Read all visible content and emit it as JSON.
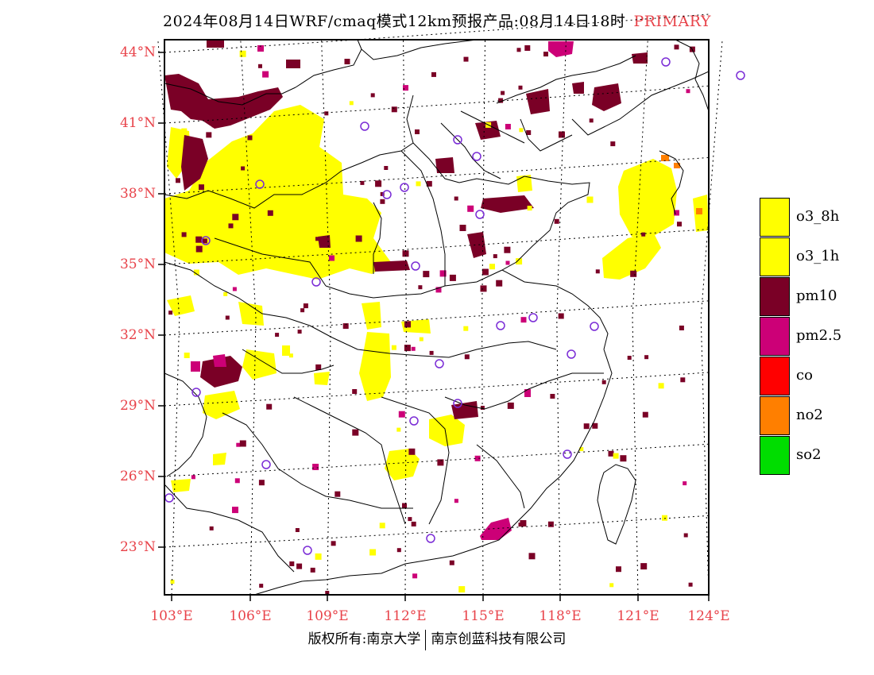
{
  "title": {
    "main": "2024年08月14日WRF/cmaq模式12km预报产品:08月14日18时",
    "tag": "PRIMARY"
  },
  "colors": {
    "label_red": "#e8434a",
    "o3_8h": "#ffff00",
    "o3_1h": "#ffff00",
    "pm10": "#7a0026",
    "pm25": "#cc0077",
    "co": "#ff0000",
    "no2": "#ff7f00",
    "so2": "#00dd00",
    "station": "#7a2bd6"
  },
  "lat_labels": [
    "44°N",
    "41°N",
    "38°N",
    "35°N",
    "32°N",
    "29°N",
    "26°N",
    "23°N"
  ],
  "lon_labels": [
    "103°E",
    "106°E",
    "109°E",
    "112°E",
    "115°E",
    "118°E",
    "121°E",
    "124°E"
  ],
  "legend": [
    {
      "label": "o3_8h",
      "color": "#ffff00"
    },
    {
      "label": "o3_1h",
      "color": "#ffff00"
    },
    {
      "label": "pm10",
      "color": "#7a0026"
    },
    {
      "label": "pm2.5",
      "color": "#cc0077"
    },
    {
      "label": "co",
      "color": "#ff0000"
    },
    {
      "label": "no2",
      "color": "#ff7f00"
    },
    {
      "label": "so2",
      "color": "#00dd00"
    }
  ],
  "copyright": {
    "left": "版权所有:南京大学",
    "right": "南京创蓝科技有限公司"
  }
}
